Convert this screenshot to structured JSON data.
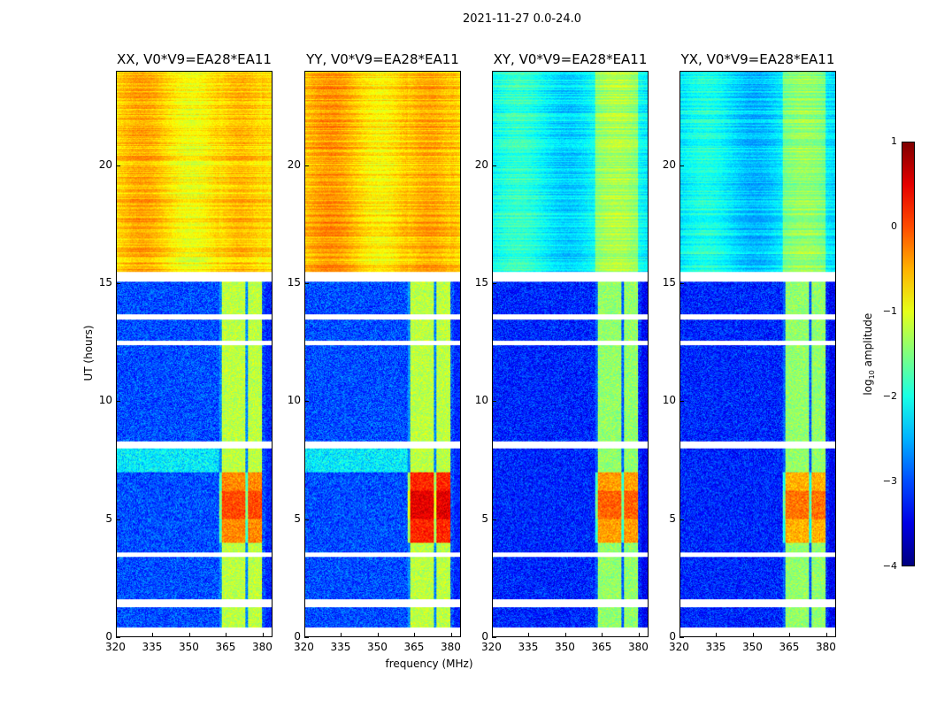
{
  "figure_title": "2021-11-27 0.0-24.0",
  "chart_data": {
    "type": "heatmap",
    "title": "2021-11-27 0.0-24.0",
    "xlabel": "frequency (MHz)",
    "ylabel": "UT (hours)",
    "xlim": [
      320,
      384
    ],
    "ylim": [
      0,
      24
    ],
    "xticks": [
      320,
      335,
      350,
      365,
      380
    ],
    "yticks": [
      0,
      5,
      10,
      15,
      20
    ],
    "colorbar": {
      "label": "log10 amplitude",
      "label_main": "log",
      "label_sub": "10",
      "label_rest": " amplitude",
      "range": [
        -4,
        1
      ],
      "ticks": [
        1,
        0,
        -1,
        -2,
        -3,
        -4
      ],
      "colormap": "jet"
    },
    "flagged_time_ranges_hours": [
      [
        0.3,
        0.4
      ],
      [
        1.25,
        1.6
      ],
      [
        3.4,
        3.6
      ],
      [
        8.0,
        8.3
      ],
      [
        12.4,
        12.6
      ],
      [
        13.5,
        13.7
      ],
      [
        15.1,
        15.5
      ]
    ],
    "high_band_mhz": [
      362,
      380
    ],
    "panels": [
      {
        "title": "XX, V0*V9=EA28*EA11",
        "pol": "XX",
        "low_level": -3.0,
        "high_level_after_15.5h": -0.7,
        "band_level": -1.2,
        "band_peak_4_7h": -0.3
      },
      {
        "title": "YY, V0*V9=EA28*EA11",
        "pol": "YY",
        "low_level": -3.0,
        "high_level_after_15.5h": -0.6,
        "band_level": -1.2,
        "band_peak_4_7h": 0.2
      },
      {
        "title": "XY, V0*V9=EA28*EA11",
        "pol": "XY",
        "low_level": -3.2,
        "high_level_after_15.5h": -2.1,
        "band_level": -1.4,
        "band_peak_4_7h": -0.4
      },
      {
        "title": "YX, V0*V9=EA28*EA11",
        "pol": "YX",
        "low_level": -3.2,
        "high_level_after_15.5h": -2.2,
        "band_level": -1.4,
        "band_peak_4_7h": -0.5
      }
    ]
  }
}
